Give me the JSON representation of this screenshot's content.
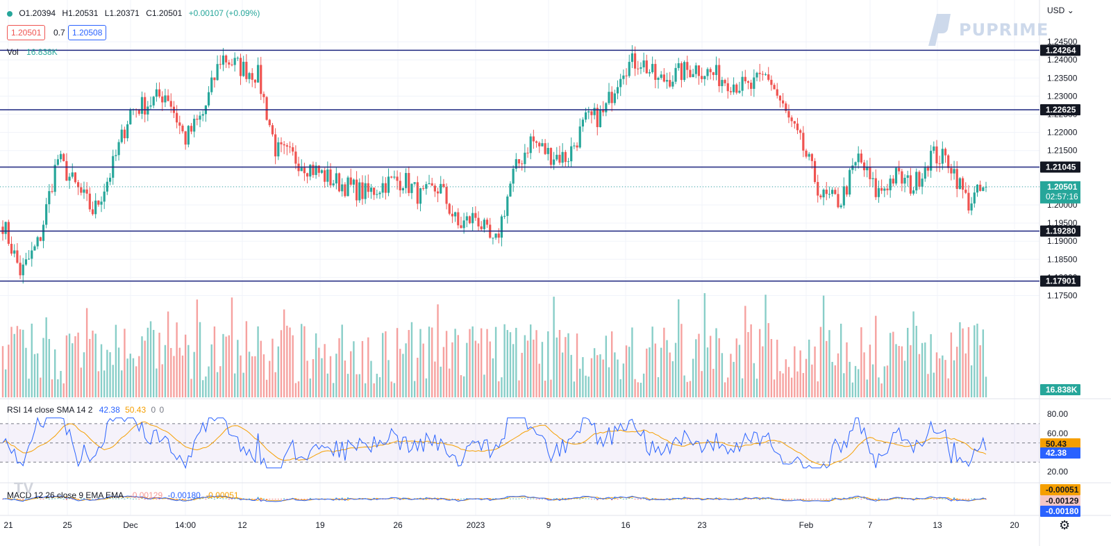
{
  "header": {
    "ohlc": {
      "open": "O1.20394",
      "high": "H1.20531",
      "low": "L1.20371",
      "close": "C1.20501",
      "change": "+0.00107 (+0.09%)"
    },
    "sell_price": "1.20501",
    "spread": "0.7",
    "buy_price": "1.20508",
    "currency": "USD",
    "brand": "PUPRIME"
  },
  "volume_legend": {
    "label": "Vol",
    "value": "16.838K"
  },
  "rsi_legend": {
    "label": "RSI 14 close SMA 14 2",
    "rsi": "42.38",
    "sma": "50.43",
    "extra1": "0",
    "extra2": "0"
  },
  "macd_legend": {
    "label": "MACD 12 26 close 9 EMA EMA",
    "hist": "-0.00129",
    "macd": "-0.00180",
    "signal": "-0.00051"
  },
  "colors": {
    "up": "#26a69a",
    "down": "#ef5350",
    "level": "#1a237e",
    "rsi": "#2962ff",
    "sma": "#f59f00",
    "grid": "#f0f3fa",
    "badge": "#131722"
  },
  "chart_data": [
    {
      "type": "candlestick",
      "title": "",
      "ylim": [
        1.17,
        1.25
      ],
      "y_ticks": [
        "1.24500",
        "1.24000",
        "1.23500",
        "1.23000",
        "1.22500",
        "1.22000",
        "1.21500",
        "1.21000",
        "1.20500",
        "1.20000",
        "1.19500",
        "1.19000",
        "1.18500",
        "1.18000",
        "1.17500"
      ],
      "x_tick_labels": [
        "21",
        "25",
        "Dec",
        "14:00",
        "12",
        "19",
        "26",
        "2023",
        "9",
        "16",
        "23",
        "Feb",
        "7",
        "13",
        "20"
      ],
      "horizontal_levels": [
        "1.24264",
        "1.22625",
        "1.21045",
        "1.19280",
        "1.17901"
      ],
      "last_price": "1.20501",
      "countdown": "02:57:16",
      "volume_last": "16.838K",
      "anchors": [
        1.195,
        1.181,
        1.19,
        1.213,
        1.205,
        1.198,
        1.21,
        1.226,
        1.228,
        1.231,
        1.218,
        1.225,
        1.241,
        1.238,
        1.236,
        1.215,
        1.213,
        1.21,
        1.207,
        1.205,
        1.203,
        1.206,
        1.207,
        1.202,
        1.205,
        1.194,
        1.197,
        1.188,
        1.208,
        1.218,
        1.214,
        1.213,
        1.223,
        1.225,
        1.238,
        1.24,
        1.234,
        1.236,
        1.238,
        1.236,
        1.234,
        1.232,
        1.236,
        1.225,
        1.215,
        1.202,
        1.201,
        1.213,
        1.203,
        1.208,
        1.205,
        1.214,
        1.212,
        1.2005,
        1.205
      ]
    },
    {
      "type": "line",
      "title": "RSI",
      "ylim": [
        10,
        88
      ],
      "y_ticks": [
        "80.00",
        "60.00",
        "20.00"
      ],
      "bands": [
        30,
        70
      ],
      "series": [
        {
          "name": "RSI",
          "last": "42.38"
        },
        {
          "name": "SMA",
          "last": "50.43"
        }
      ]
    },
    {
      "type": "line",
      "title": "MACD",
      "series": [
        {
          "name": "MACD",
          "last": "-0.00180"
        },
        {
          "name": "Signal",
          "last": "-0.00051"
        },
        {
          "name": "Histogram",
          "last": "-0.00129"
        }
      ]
    }
  ]
}
